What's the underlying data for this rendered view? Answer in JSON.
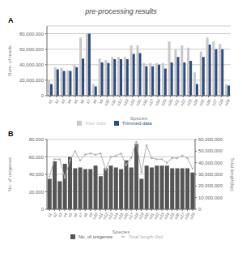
{
  "title": "pre-processing results",
  "chart_data": [
    {
      "type": "bar",
      "title": "A",
      "xlabel": "Species",
      "ylabel": "Num. of reads",
      "categories": [
        "s1",
        "s2",
        "s3",
        "s4",
        "s5",
        "s6",
        "s7",
        "s8",
        "s9",
        "s10",
        "s11",
        "s12",
        "s13",
        "s14",
        "s15",
        "s16",
        "s17",
        "s18",
        "s19",
        "s20",
        "s21",
        "s22",
        "s23",
        "s24",
        "s25",
        "s26",
        "s27",
        "s28",
        "s29"
      ],
      "series": [
        {
          "name": "Raw data",
          "color": "#c8c8c8",
          "values": [
            20000000,
            37000000,
            36000000,
            33000000,
            40000000,
            75000000,
            80000000,
            15000000,
            48000000,
            46000000,
            50000000,
            50000000,
            50000000,
            65000000,
            65000000,
            42000000,
            42000000,
            42000000,
            42000000,
            70000000,
            60000000,
            65000000,
            62000000,
            30000000,
            57000000,
            75000000,
            70000000,
            67000000,
            15000000
          ]
        },
        {
          "name": "Trimmed data",
          "color": "#2b4b7e",
          "values": [
            15000000,
            34000000,
            32000000,
            32000000,
            37000000,
            48000000,
            80000000,
            12000000,
            43000000,
            42000000,
            47000000,
            47000000,
            47000000,
            54000000,
            55000000,
            38000000,
            38000000,
            40000000,
            35000000,
            43000000,
            50000000,
            43000000,
            45000000,
            15000000,
            50000000,
            66000000,
            60000000,
            60000000,
            13000000
          ]
        }
      ],
      "ylim": [
        0,
        90000000
      ],
      "yticks": [
        0,
        {
          "value": 20000000,
          "label": "20,000,000"
        },
        {
          "value": 40000000,
          "label": "40,000,000"
        },
        {
          "value": 60000000,
          "label": "60,000,000"
        },
        {
          "value": 80000000,
          "label": "80,000,000"
        }
      ],
      "grid": "y",
      "legend": "bottom"
    },
    {
      "type": "bar",
      "title": "B",
      "xlabel": "Species",
      "ylabel": "No. of unigenes",
      "y2label": "Total length(bp)",
      "categories": [
        "s1",
        "s2",
        "s3",
        "s4",
        "s5",
        "s6",
        "s7",
        "s8",
        "s9",
        "s10",
        "s11",
        "s12",
        "s13",
        "s14",
        "s15",
        "s16",
        "s17",
        "s18",
        "s19",
        "s20",
        "s21",
        "s22",
        "s23",
        "s24",
        "s25",
        "s26",
        "s27",
        "s28",
        "s29"
      ],
      "series": [
        {
          "name": "No. of unigenes",
          "type": "bar",
          "color": "#555555",
          "values": [
            35000,
            55000,
            32000,
            52000,
            60000,
            47000,
            48000,
            46000,
            46000,
            50000,
            38000,
            47000,
            50000,
            48000,
            46000,
            56000,
            48000,
            75000,
            35000,
            50000,
            48000,
            50000,
            50000,
            50000,
            47000,
            47000,
            47000,
            47000,
            42000
          ]
        },
        {
          "name": "Total length (bp)",
          "type": "line",
          "axis": "y2",
          "color": "#b0b0b0",
          "marker": "circle",
          "line_style": "solid",
          "values": [
            28000000,
            43000000,
            43000000,
            27000000,
            42000000,
            50000000,
            42000000,
            47000000,
            48000000,
            47000000,
            48000000,
            34000000,
            45000000,
            46000000,
            48000000,
            38000000,
            44000000,
            58000000,
            32000000,
            55000000,
            44000000,
            43000000,
            43000000,
            40000000,
            44000000,
            44000000,
            46000000,
            44000000,
            35000000
          ]
        }
      ],
      "ylim": [
        0,
        80000
      ],
      "yticks": [
        0,
        {
          "value": 20000,
          "label": "20,000"
        },
        {
          "value": 40000,
          "label": "40,000"
        },
        {
          "value": 60000,
          "label": "60,000"
        },
        {
          "value": 80000,
          "label": "80,000"
        }
      ],
      "y2lim": [
        0,
        60000000
      ],
      "y2ticks": [
        0,
        {
          "value": 10000000,
          "label": "10,000,000"
        },
        {
          "value": 20000000,
          "label": "20,000,000"
        },
        {
          "value": 30000000,
          "label": "30,000,000"
        },
        {
          "value": 40000000,
          "label": "40,000,000"
        },
        {
          "value": 50000000,
          "label": "50,000,000"
        },
        {
          "value": 60000000,
          "label": "60,000,000"
        }
      ],
      "grid": "y",
      "legend": "bottom"
    }
  ]
}
